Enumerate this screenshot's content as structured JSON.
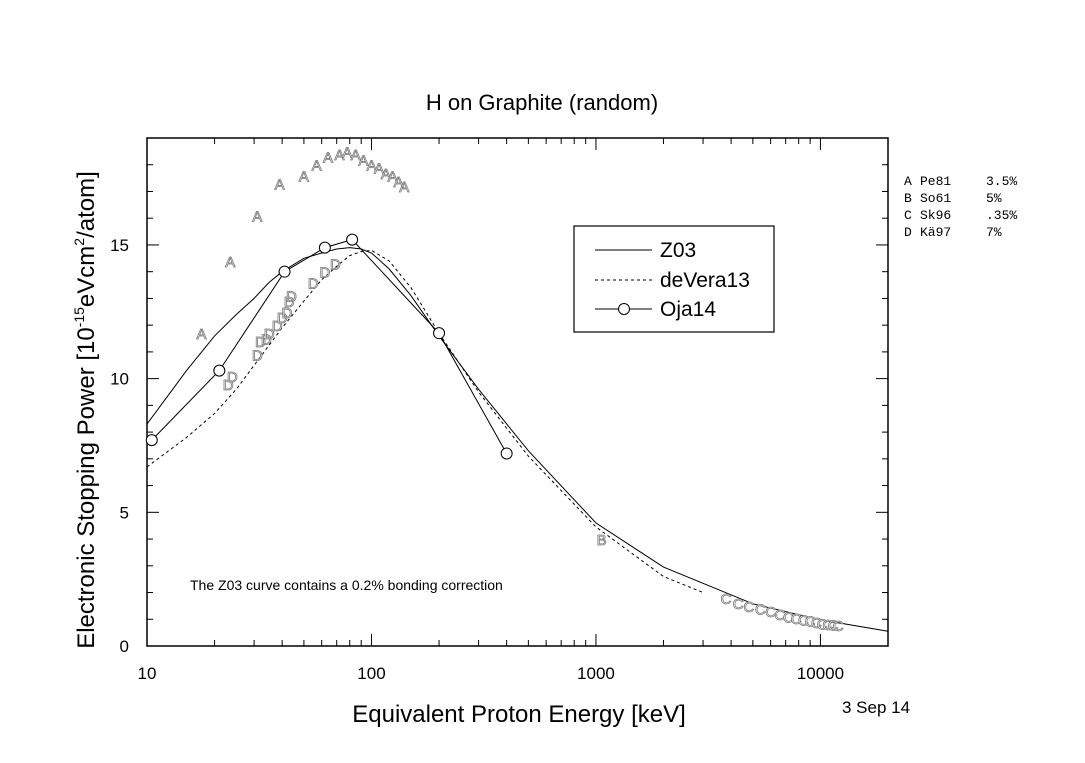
{
  "chart_data": {
    "type": "line",
    "title": "H on Graphite (random)",
    "xlabel": "Equivalent Proton Energy [keV]",
    "ylabel_parts": [
      "Electronic Stopping Power [10",
      "-15",
      "eVcm",
      "2",
      "/atom]"
    ],
    "x_scale": "log",
    "xlim": [
      10,
      20000
    ],
    "ylim": [
      0,
      19
    ],
    "x_ticks": [
      10,
      100,
      1000,
      10000
    ],
    "x_tick_labels": [
      "10",
      "100",
      "1000",
      "10000"
    ],
    "y_ticks": [
      0,
      5,
      10,
      15
    ],
    "y_tick_labels": [
      "0",
      "5",
      "10",
      "15"
    ],
    "grid": false,
    "legend_placement": "upper-right inside plot",
    "series": [
      {
        "name": "Z03",
        "style": "solid",
        "x": [
          10,
          15,
          20,
          25,
          30,
          35,
          40,
          50,
          60,
          70,
          80,
          90,
          100,
          120,
          150,
          200,
          300,
          500,
          1000,
          2000,
          5000,
          10000,
          20000
        ],
        "y": [
          8.3,
          10.3,
          11.6,
          12.4,
          13.0,
          13.6,
          14.0,
          14.5,
          14.7,
          14.85,
          14.9,
          14.85,
          14.7,
          14.1,
          13.1,
          11.6,
          9.6,
          7.3,
          4.6,
          2.95,
          1.58,
          0.98,
          0.55
        ]
      },
      {
        "name": "deVera13",
        "style": "dashed",
        "x": [
          10,
          15,
          20,
          25,
          30,
          40,
          50,
          60,
          70,
          80,
          90,
          100,
          120,
          150,
          200,
          300,
          500,
          1000,
          2000,
          3000
        ],
        "y": [
          6.7,
          7.8,
          8.7,
          9.6,
          10.5,
          11.9,
          12.9,
          13.7,
          14.2,
          14.6,
          14.75,
          14.8,
          14.4,
          13.4,
          11.7,
          9.5,
          7.1,
          4.45,
          2.6,
          2.0
        ]
      },
      {
        "name": "Oja14",
        "style": "solid-circle",
        "x": [
          10.5,
          21,
          41,
          62,
          82,
          200,
          400
        ],
        "y": [
          7.7,
          10.3,
          14.0,
          14.9,
          15.2,
          11.7,
          7.2
        ]
      }
    ],
    "experimental": [
      {
        "letter": "A",
        "ref": "Pe81",
        "error": "3.5%",
        "x": [
          17.5,
          23.5,
          31,
          39,
          50,
          57,
          64,
          72,
          78,
          85,
          92,
          100,
          108,
          116,
          124,
          132,
          140
        ],
        "y": [
          11.7,
          14.4,
          16.1,
          17.3,
          17.6,
          18.0,
          18.3,
          18.4,
          18.5,
          18.4,
          18.2,
          18.0,
          17.9,
          17.7,
          17.6,
          17.4,
          17.2
        ]
      },
      {
        "letter": "B",
        "ref": "So61",
        "error": "5%",
        "x": [
          1060
        ],
        "y": [
          4.0
        ]
      },
      {
        "letter": "C",
        "ref": "Sk96",
        "error": ".35%",
        "x": [
          3800,
          4300,
          4800,
          5400,
          6000,
          6600,
          7200,
          7800,
          8400,
          9000,
          9600,
          10200,
          10800,
          11400,
          12000
        ],
        "y": [
          1.8,
          1.6,
          1.5,
          1.4,
          1.3,
          1.2,
          1.1,
          1.05,
          1.0,
          0.95,
          0.9,
          0.85,
          0.82,
          0.8,
          0.78
        ]
      },
      {
        "letter": "D",
        "ref": "Kä97",
        "error": "7%",
        "x": [
          23,
          24,
          31,
          32,
          34,
          35,
          38,
          40,
          42,
          43,
          44,
          55,
          62,
          69
        ],
        "y": [
          9.8,
          10.1,
          10.9,
          11.4,
          11.5,
          11.7,
          12.0,
          12.3,
          12.5,
          12.9,
          13.1,
          13.6,
          14.0,
          14.3
        ]
      }
    ],
    "annotation": "The Z03 curve contains a 0.2% bonding correction",
    "date": "3 Sep 14"
  }
}
